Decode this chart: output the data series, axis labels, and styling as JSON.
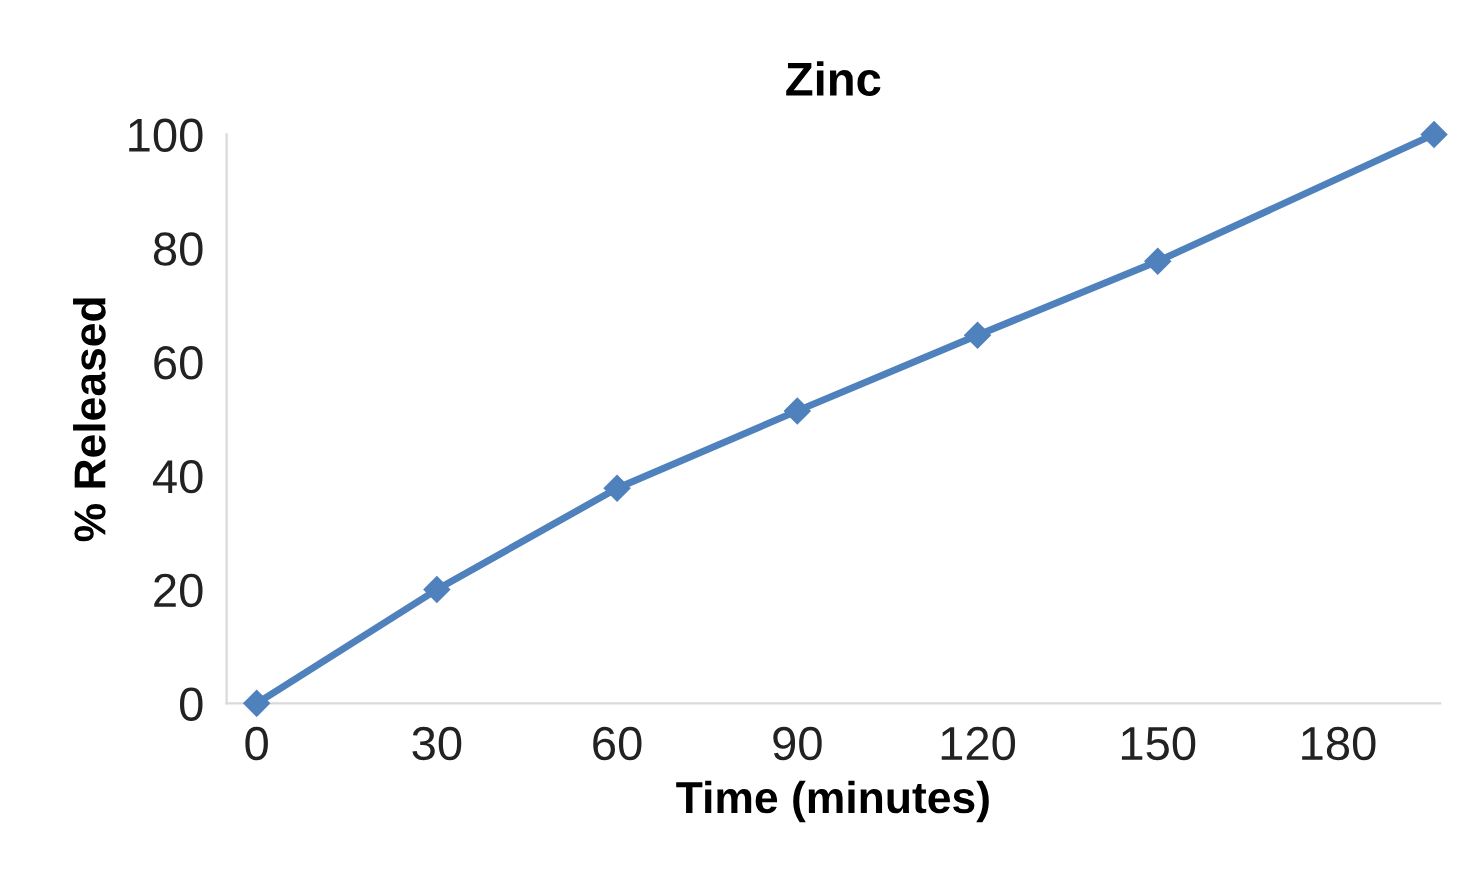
{
  "chart_data": {
    "type": "line",
    "title": "Zinc",
    "xlabel": "Time (minutes)",
    "ylabel": "% Released",
    "x": [
      0,
      30,
      60,
      90,
      120,
      150,
      196
    ],
    "series": [
      {
        "color": "#4f81bd",
        "values": [
          0,
          20,
          37.8,
          51.4,
          64.7,
          77.7,
          100
        ]
      }
    ],
    "xlim": [
      -5,
      197
    ],
    "xticks": [
      0,
      30,
      60,
      90,
      120,
      150,
      180
    ],
    "ylim": [
      0,
      100
    ],
    "yticks": [
      0,
      20,
      40,
      60,
      80,
      100
    ],
    "grid": false,
    "legend": false,
    "marker": "diamond",
    "line_style": "solid"
  }
}
